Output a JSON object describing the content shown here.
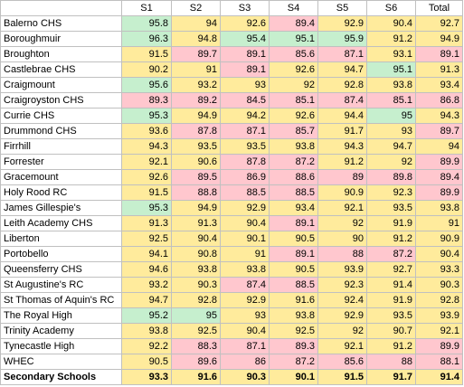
{
  "header": {
    "blank": "",
    "columns": [
      "S1",
      "S2",
      "S3",
      "S4",
      "S5",
      "S6",
      "Total"
    ]
  },
  "colors": {
    "green": "#c6efce",
    "yellow": "#ffeb9c",
    "red": "#ffc7ce"
  },
  "rows": [
    {
      "name": "Balerno CHS",
      "values": [
        "95.8",
        "94",
        "92.6",
        "89.4",
        "92.9",
        "90.4",
        "92.7"
      ],
      "colors": [
        "g",
        "y",
        "y",
        "r",
        "y",
        "y",
        "y"
      ]
    },
    {
      "name": "Boroughmuir",
      "values": [
        "96.3",
        "94.8",
        "95.4",
        "95.1",
        "95.9",
        "91.2",
        "94.9"
      ],
      "colors": [
        "g",
        "y",
        "g",
        "g",
        "g",
        "y",
        "y"
      ]
    },
    {
      "name": "Broughton",
      "values": [
        "91.5",
        "89.7",
        "89.1",
        "85.6",
        "87.1",
        "93.1",
        "89.1"
      ],
      "colors": [
        "y",
        "r",
        "r",
        "r",
        "r",
        "y",
        "r"
      ]
    },
    {
      "name": "Castlebrae CHS",
      "values": [
        "90.2",
        "91",
        "89.1",
        "92.6",
        "94.7",
        "95.1",
        "91.3"
      ],
      "colors": [
        "y",
        "y",
        "r",
        "y",
        "y",
        "g",
        "y"
      ]
    },
    {
      "name": "Craigmount",
      "values": [
        "95.6",
        "93.2",
        "93",
        "92",
        "92.8",
        "93.8",
        "93.4"
      ],
      "colors": [
        "g",
        "y",
        "y",
        "y",
        "y",
        "y",
        "y"
      ]
    },
    {
      "name": "Craigroyston CHS",
      "values": [
        "89.3",
        "89.2",
        "84.5",
        "85.1",
        "87.4",
        "85.1",
        "86.8"
      ],
      "colors": [
        "r",
        "r",
        "r",
        "r",
        "r",
        "r",
        "r"
      ]
    },
    {
      "name": "Currie CHS",
      "values": [
        "95.3",
        "94.9",
        "94.2",
        "92.6",
        "94.4",
        "95",
        "94.3"
      ],
      "colors": [
        "g",
        "y",
        "y",
        "y",
        "y",
        "g",
        "y"
      ]
    },
    {
      "name": "Drummond CHS",
      "values": [
        "93.6",
        "87.8",
        "87.1",
        "85.7",
        "91.7",
        "93",
        "89.7"
      ],
      "colors": [
        "y",
        "r",
        "r",
        "r",
        "y",
        "y",
        "r"
      ]
    },
    {
      "name": "Firrhill",
      "values": [
        "94.3",
        "93.5",
        "93.5",
        "93.8",
        "94.3",
        "94.7",
        "94"
      ],
      "colors": [
        "y",
        "y",
        "y",
        "y",
        "y",
        "y",
        "y"
      ]
    },
    {
      "name": "Forrester",
      "values": [
        "92.1",
        "90.6",
        "87.8",
        "87.2",
        "91.2",
        "92",
        "89.9"
      ],
      "colors": [
        "y",
        "y",
        "r",
        "r",
        "y",
        "y",
        "r"
      ]
    },
    {
      "name": "Gracemount",
      "values": [
        "92.6",
        "89.5",
        "86.9",
        "88.6",
        "89",
        "89.8",
        "89.4"
      ],
      "colors": [
        "y",
        "r",
        "r",
        "r",
        "r",
        "r",
        "r"
      ]
    },
    {
      "name": "Holy Rood RC",
      "values": [
        "91.5",
        "88.8",
        "88.5",
        "88.5",
        "90.9",
        "92.3",
        "89.9"
      ],
      "colors": [
        "y",
        "r",
        "r",
        "r",
        "y",
        "y",
        "r"
      ]
    },
    {
      "name": "James Gillespie's",
      "values": [
        "95.3",
        "94.9",
        "92.9",
        "93.4",
        "92.1",
        "93.5",
        "93.8"
      ],
      "colors": [
        "g",
        "y",
        "y",
        "y",
        "y",
        "y",
        "y"
      ]
    },
    {
      "name": "Leith Academy CHS",
      "values": [
        "91.3",
        "91.3",
        "90.4",
        "89.1",
        "92",
        "91.9",
        "91"
      ],
      "colors": [
        "y",
        "y",
        "y",
        "r",
        "y",
        "y",
        "y"
      ]
    },
    {
      "name": "Liberton",
      "values": [
        "92.5",
        "90.4",
        "90.1",
        "90.5",
        "90",
        "91.2",
        "90.9"
      ],
      "colors": [
        "y",
        "y",
        "y",
        "y",
        "y",
        "y",
        "y"
      ]
    },
    {
      "name": "Portobello",
      "values": [
        "94.1",
        "90.8",
        "91",
        "89.1",
        "88",
        "87.2",
        "90.4"
      ],
      "colors": [
        "y",
        "y",
        "y",
        "r",
        "r",
        "r",
        "y"
      ]
    },
    {
      "name": "Queensferry CHS",
      "values": [
        "94.6",
        "93.8",
        "93.8",
        "90.5",
        "93.9",
        "92.7",
        "93.3"
      ],
      "colors": [
        "y",
        "y",
        "y",
        "y",
        "y",
        "y",
        "y"
      ]
    },
    {
      "name": "St Augustine's RC",
      "values": [
        "93.2",
        "90.3",
        "87.4",
        "88.5",
        "92.3",
        "91.4",
        "90.3"
      ],
      "colors": [
        "y",
        "y",
        "r",
        "r",
        "y",
        "y",
        "y"
      ]
    },
    {
      "name": "St Thomas of Aquin's RC",
      "values": [
        "94.7",
        "92.8",
        "92.9",
        "91.6",
        "92.4",
        "91.9",
        "92.8"
      ],
      "colors": [
        "y",
        "y",
        "y",
        "y",
        "y",
        "y",
        "y"
      ]
    },
    {
      "name": "The Royal High",
      "values": [
        "95.2",
        "95",
        "93",
        "93.8",
        "92.9",
        "93.5",
        "93.9"
      ],
      "colors": [
        "g",
        "g",
        "y",
        "y",
        "y",
        "y",
        "y"
      ]
    },
    {
      "name": "Trinity Academy",
      "values": [
        "93.8",
        "92.5",
        "90.4",
        "92.5",
        "92",
        "90.7",
        "92.1"
      ],
      "colors": [
        "y",
        "y",
        "y",
        "y",
        "y",
        "y",
        "y"
      ]
    },
    {
      "name": "Tynecastle High",
      "values": [
        "92.2",
        "88.3",
        "87.1",
        "89.3",
        "92.1",
        "91.2",
        "89.9"
      ],
      "colors": [
        "y",
        "r",
        "r",
        "r",
        "y",
        "y",
        "r"
      ]
    },
    {
      "name": "WHEC",
      "values": [
        "90.5",
        "89.6",
        "86",
        "87.2",
        "85.6",
        "88",
        "88.1"
      ],
      "colors": [
        "y",
        "r",
        "r",
        "r",
        "r",
        "r",
        "r"
      ]
    },
    {
      "name": "Secondary Schools",
      "values": [
        "93.3",
        "91.6",
        "90.3",
        "90.1",
        "91.5",
        "91.7",
        "91.4"
      ],
      "colors": [
        "y",
        "y",
        "y",
        "y",
        "y",
        "y",
        "y"
      ],
      "summary": true
    }
  ]
}
